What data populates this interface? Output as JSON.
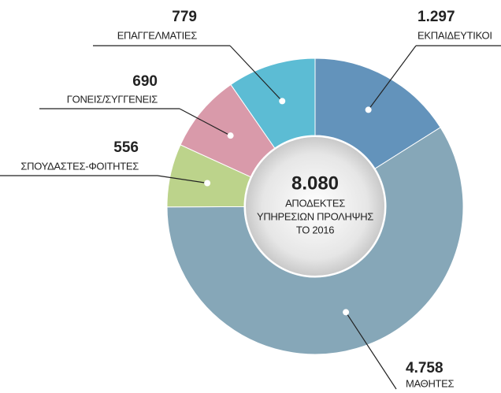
{
  "chart_data": {
    "type": "pie",
    "categories": [
      "ΕΚΠΑΙΔΕΥΤΙΚΟΙ",
      "ΜΑΘΗΤΕΣ",
      "ΣΠΟΥΔΑΣΤΕΣ-ΦΟΙΤΗΤΕΣ",
      "ΓΟΝΕΙΣ/ΣΥΓΓΕΝΕΙΣ",
      "ΕΠΑΓΓΕΛΜΑΤΙΕΣ"
    ],
    "values": [
      1297,
      4758,
      556,
      690,
      779
    ],
    "value_labels": [
      "1.297",
      "4.758",
      "556",
      "690",
      "779"
    ],
    "colors": [
      "#6393bb",
      "#86a7b8",
      "#bcd38b",
      "#d99aaa",
      "#5cbcd4"
    ],
    "total": {
      "value": 8080,
      "label": "8.080"
    },
    "center_text": [
      "ΑΠΟΔΕΚΤΕΣ",
      "ΥΠΗΡΕΣΙΩΝ ΠΡΟΛΗΨΗΣ",
      "ΤΟ 2016"
    ]
  }
}
